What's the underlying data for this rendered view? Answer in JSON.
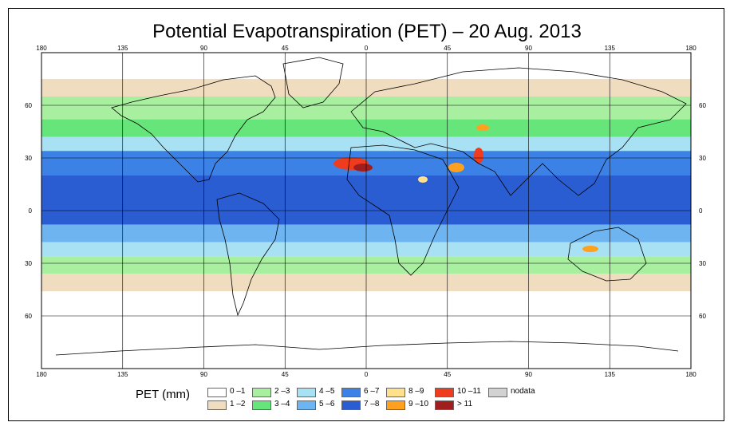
{
  "title": "Potential Evapotranspiration (PET) – 20 Aug. 2013",
  "lon_labels": [
    "180",
    "135",
    "90",
    "45",
    "0",
    "45",
    "90",
    "135",
    "180"
  ],
  "lat_labels": [
    "60",
    "30",
    "0",
    "30",
    "60"
  ],
  "legend": {
    "title": "PET (mm)",
    "classes": [
      {
        "label": "0 –1",
        "color": "#ffffff"
      },
      {
        "label": "1 –2",
        "color": "#f0dcbe"
      },
      {
        "label": "2 –3",
        "color": "#a8f0a0"
      },
      {
        "label": "3 –4",
        "color": "#66e67a"
      },
      {
        "label": "4 –5",
        "color": "#a8e0f4"
      },
      {
        "label": "5 –6",
        "color": "#6eb4f0"
      },
      {
        "label": "6 –7",
        "color": "#3c82e6"
      },
      {
        "label": "7 –8",
        "color": "#2a5cd2"
      },
      {
        "label": "8 –9",
        "color": "#ffe08c"
      },
      {
        "label": "9 –10",
        "color": "#ffa01e"
      },
      {
        "label": "10 –11",
        "color": "#f03c1e"
      },
      {
        "label": "> 11",
        "color": "#a01e1e"
      },
      {
        "label": "nodata",
        "color": "#d2d2d2"
      }
    ]
  },
  "colors": {
    "lat_bands": [
      {
        "from": 90,
        "to": 75,
        "color": "#ffffff"
      },
      {
        "from": 75,
        "to": 65,
        "color": "#f0dcbe"
      },
      {
        "from": 65,
        "to": 52,
        "color": "#a8f0a0"
      },
      {
        "from": 52,
        "to": 42,
        "color": "#66e67a"
      },
      {
        "from": 42,
        "to": 34,
        "color": "#a8e0f4"
      },
      {
        "from": 34,
        "to": 20,
        "color": "#3c82e6"
      },
      {
        "from": 20,
        "to": -8,
        "color": "#2a5cd2"
      },
      {
        "from": -8,
        "to": -18,
        "color": "#6eb4f0"
      },
      {
        "from": -18,
        "to": -26,
        "color": "#a8e0f4"
      },
      {
        "from": -26,
        "to": -36,
        "color": "#a8f0a0"
      },
      {
        "from": -36,
        "to": -46,
        "color": "#f0dcbe"
      },
      {
        "from": -46,
        "to": -90,
        "color": "#ffffff"
      }
    ]
  }
}
